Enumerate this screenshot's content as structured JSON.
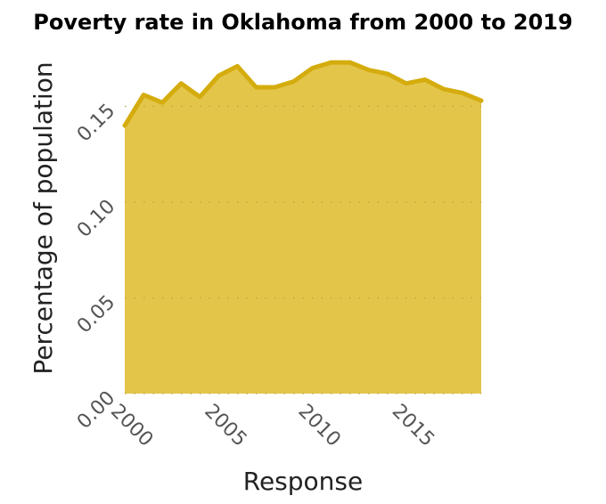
{
  "chart_data": {
    "type": "area",
    "title": "Poverty rate in Oklahoma from 2000 to 2019",
    "xlabel": "Response",
    "ylabel": "Percentage of population",
    "x": [
      2000,
      2001,
      2002,
      2003,
      2004,
      2005,
      2006,
      2007,
      2008,
      2009,
      2010,
      2011,
      2012,
      2013,
      2014,
      2015,
      2016,
      2017,
      2018,
      2019
    ],
    "series": [
      {
        "values": [
          0.14,
          0.156,
          0.152,
          0.162,
          0.155,
          0.166,
          0.171,
          0.16,
          0.16,
          0.163,
          0.17,
          0.173,
          0.173,
          0.169,
          0.167,
          0.162,
          0.164,
          0.159,
          0.157,
          0.153
        ]
      }
    ],
    "xlim": [
      2000,
      2019
    ],
    "ylim": [
      0.0,
      0.18
    ],
    "x_ticks": [
      2000,
      2005,
      2010,
      2015
    ],
    "x_tick_labels": [
      "2000",
      "2005",
      "2010",
      "2015"
    ],
    "y_ticks": [
      0.0,
      0.05,
      0.1,
      0.15
    ],
    "y_tick_labels": [
      "0.00",
      "0.05",
      "0.10",
      "0.15"
    ],
    "grid": "horizontal dotted",
    "legend": "none",
    "colors": {
      "fill": "#e3c54a",
      "line": "#d4ac0d",
      "grid": "#bfa53a"
    }
  }
}
